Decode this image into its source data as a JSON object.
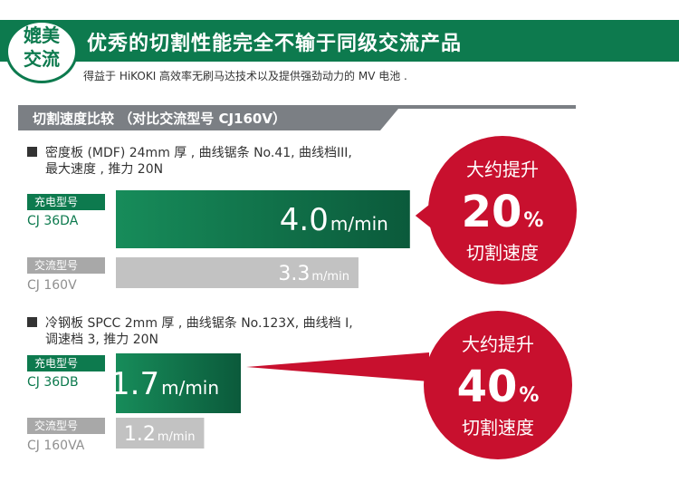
{
  "header": {
    "badge": "媲美\n交流",
    "title": "优秀的切割性能完全不输于同级交流产品",
    "subtitle": "得益于 HiKOKI 高效率无刷马达技术以及提供强劲动力的 MV 电池 ."
  },
  "section": {
    "title": "切割速度比较 （对比交流型号 CJ160V）"
  },
  "tests": [
    {
      "desc_line1": "密度板 (MDF) 24mm 厚 , 曲线锯条 No.41, 曲线档III,",
      "desc_line2": "最大速度 , 推力 20N",
      "cordless_tag": "充电型号",
      "cordless_model": "CJ 36DA",
      "corded_tag": "交流型号",
      "corded_model": "CJ 160V",
      "callout_top": "大约提升",
      "callout_pct": "20",
      "callout_pct_sign": "%",
      "callout_bottom": "切割速度"
    },
    {
      "desc_line1": "冷钢板 SPCC 2mm 厚 , 曲线锯条 No.123X, 曲线档 I,",
      "desc_line2": "调速档 3, 推力 20N",
      "cordless_tag": "充电型号",
      "cordless_model": "CJ 36DB",
      "corded_tag": "交流型号",
      "corded_model": "CJ 160VA",
      "callout_top": "大约提升",
      "callout_pct": "40",
      "callout_pct_sign": "%",
      "callout_bottom": "切割速度"
    }
  ],
  "chart_data": [
    {
      "type": "bar",
      "orientation": "horizontal",
      "unit": "m/min",
      "categories": [
        "CJ 36DA",
        "CJ 160V"
      ],
      "values": [
        4.0,
        3.3
      ],
      "value_labels": [
        "4.0",
        "3.3"
      ]
    },
    {
      "type": "bar",
      "orientation": "horizontal",
      "unit": "m/min",
      "categories": [
        "CJ 36DB",
        "CJ 160VA"
      ],
      "values": [
        1.7,
        1.2
      ],
      "value_labels": [
        "1.7",
        "1.2"
      ]
    }
  ],
  "colors": {
    "brand_green": "#0d7a4e",
    "bar_green_light": "#178c5a",
    "bar_green_dark": "#0b5a3b",
    "bar_gray": "#c2c2c2",
    "callout_red": "#c8102e",
    "section_bar": "#7b7f84"
  }
}
